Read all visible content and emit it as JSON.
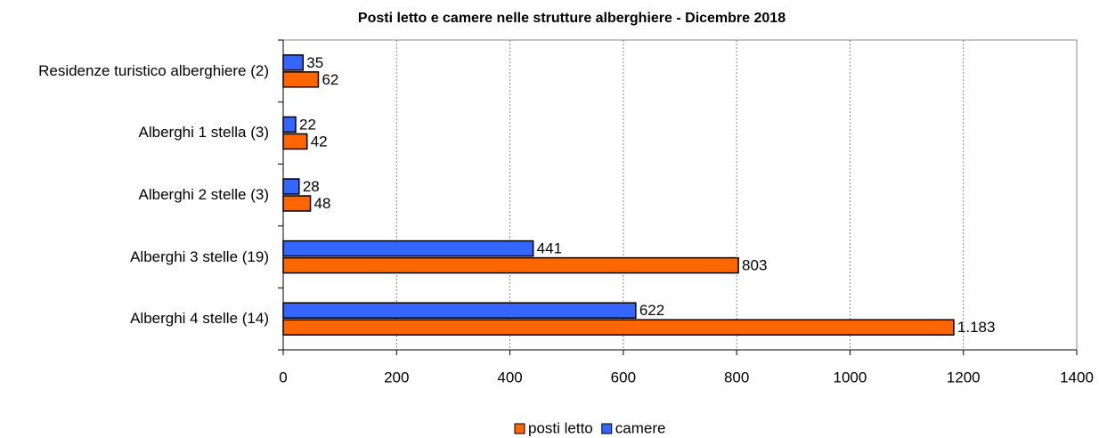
{
  "chart_data": {
    "type": "hbar",
    "title": "Posti letto e camere nelle strutture alberghiere - Dicembre 2018",
    "categories": [
      "Residenze turistico alberghiere (2)",
      "Alberghi 1 stella (3)",
      "Alberghi 2 stelle (3)",
      "Alberghi 3 stelle (19)",
      "Alberghi 4 stelle (14)"
    ],
    "series": [
      {
        "name": "posti letto",
        "color": "#ff6600",
        "values": [
          62,
          42,
          48,
          803,
          1183
        ],
        "value_labels": [
          "62",
          "42",
          "48",
          "803",
          "1.183"
        ]
      },
      {
        "name": "camere",
        "color": "#3366ff",
        "values": [
          35,
          22,
          28,
          441,
          622
        ]
      }
    ],
    "xlim": [
      0,
      1400
    ],
    "xticks": [
      0,
      200,
      400,
      600,
      800,
      1000,
      1200,
      1400
    ],
    "grid": true,
    "legend": "bottom"
  }
}
